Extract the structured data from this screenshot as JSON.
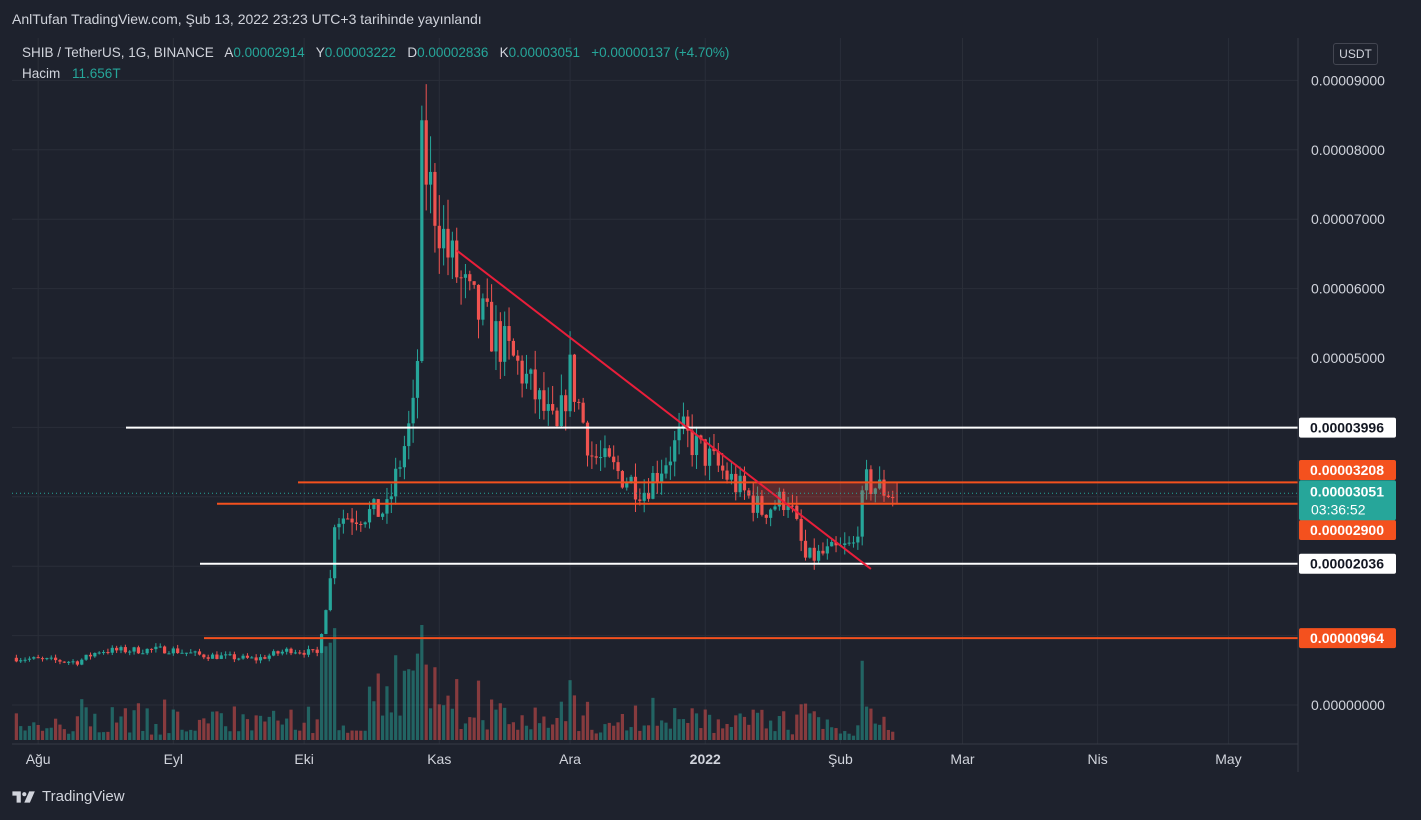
{
  "header": {
    "published": "AnlTufan TradingView.com, Şub 13, 2022 23:23 UTC+3 tarihinde yayınlandı"
  },
  "legend": {
    "symbol": "SHIB / TetherUS, 1G, BINANCE",
    "open_label": "A",
    "open": "0.00002914",
    "high_label": "Y",
    "high": "0.00003222",
    "low_label": "D",
    "low": "0.00002836",
    "close_label": "K",
    "close": "0.00003051",
    "change": "+0.00000137 (+4.70%)",
    "volume_label": "Hacim",
    "volume": "11.656T"
  },
  "currency_button": "USDT",
  "footer": {
    "brand": "TradingView"
  },
  "colors": {
    "up": "#26a69a",
    "down": "#ef5350",
    "orange": "#f4511e",
    "white_line": "#ffffff",
    "trend": "#e91e3a",
    "background": "#1e222d",
    "grid": "#2a2e39"
  },
  "chart_data": {
    "type": "candlestick",
    "symbol": "SHIB / TetherUS",
    "interval": "1G",
    "y_axis_ticks": [
      "0.00009000",
      "0.00008000",
      "0.00007000",
      "0.00006000",
      "0.00005000",
      "0.00000000"
    ],
    "x_axis_ticks": [
      "Ağu",
      "Eyl",
      "Eki",
      "Kas",
      "Ara",
      "2022",
      "Şub",
      "Mar",
      "Nis",
      "May"
    ],
    "horizontal_levels": [
      {
        "value": 3.996e-05,
        "label": "0.00003996",
        "style": "white"
      },
      {
        "value": 3.208e-05,
        "label": "0.00003208",
        "style": "orange"
      },
      {
        "value": 2.9e-05,
        "label": "0.00002900",
        "style": "orange"
      },
      {
        "value": 2.036e-05,
        "label": "0.00002036",
        "style": "white"
      },
      {
        "value": 9.64e-06,
        "label": "0.00000964",
        "style": "orange"
      }
    ],
    "last_price": {
      "value": 3.051e-05,
      "label": "0.00003051",
      "countdown": "03:36:52"
    },
    "trendline": {
      "from": {
        "date": "2021-11-05",
        "value": 6.55e-05
      },
      "to": {
        "date": "2022-02-08",
        "value": 1.96e-05
      }
    },
    "zone": {
      "from_date": "2022-01-12",
      "to_date": "2022-02-14",
      "top": 3.208e-05,
      "bottom": 2.9e-05
    },
    "price_path": [
      {
        "date": "2021-07-26",
        "close": 6.8e-06
      },
      {
        "date": "2021-08-10",
        "close": 6.2e-06
      },
      {
        "date": "2021-08-15",
        "close": 7.8e-06
      },
      {
        "date": "2021-08-31",
        "close": 8e-06
      },
      {
        "date": "2021-09-07",
        "close": 7.2e-06
      },
      {
        "date": "2021-09-20",
        "close": 6.6e-06
      },
      {
        "date": "2021-09-28",
        "close": 8e-06
      },
      {
        "date": "2021-10-04",
        "close": 7.4e-06
      },
      {
        "date": "2021-10-07",
        "close": 1.8e-05
      },
      {
        "date": "2021-10-08",
        "close": 2.7e-05
      },
      {
        "date": "2021-10-20",
        "close": 2.8e-05
      },
      {
        "date": "2021-10-26",
        "close": 4.2e-05
      },
      {
        "date": "2021-10-27",
        "close": 5e-05
      },
      {
        "date": "2021-10-28",
        "close": 7.9e-05
      },
      {
        "date": "2021-11-03",
        "close": 6.5e-05
      },
      {
        "date": "2021-11-08",
        "close": 5.8e-05
      },
      {
        "date": "2021-11-20",
        "close": 4.8e-05
      },
      {
        "date": "2021-11-28",
        "close": 3.9e-05
      },
      {
        "date": "2021-12-01",
        "close": 4.8e-05
      },
      {
        "date": "2021-12-06",
        "close": 3.6e-05
      },
      {
        "date": "2021-12-18",
        "close": 3.1e-05
      },
      {
        "date": "2021-12-27",
        "close": 3.9e-05
      },
      {
        "date": "2022-01-06",
        "close": 3.3e-05
      },
      {
        "date": "2022-01-14",
        "close": 2.8e-05
      },
      {
        "date": "2022-01-20",
        "close": 3e-05
      },
      {
        "date": "2022-01-24",
        "close": 2.1e-05
      },
      {
        "date": "2022-02-04",
        "close": 2.3e-05
      },
      {
        "date": "2022-02-07",
        "close": 3.2e-05
      },
      {
        "date": "2022-02-13",
        "close": 3.05e-05
      }
    ],
    "volume_last": "11.656T",
    "grid": true
  }
}
